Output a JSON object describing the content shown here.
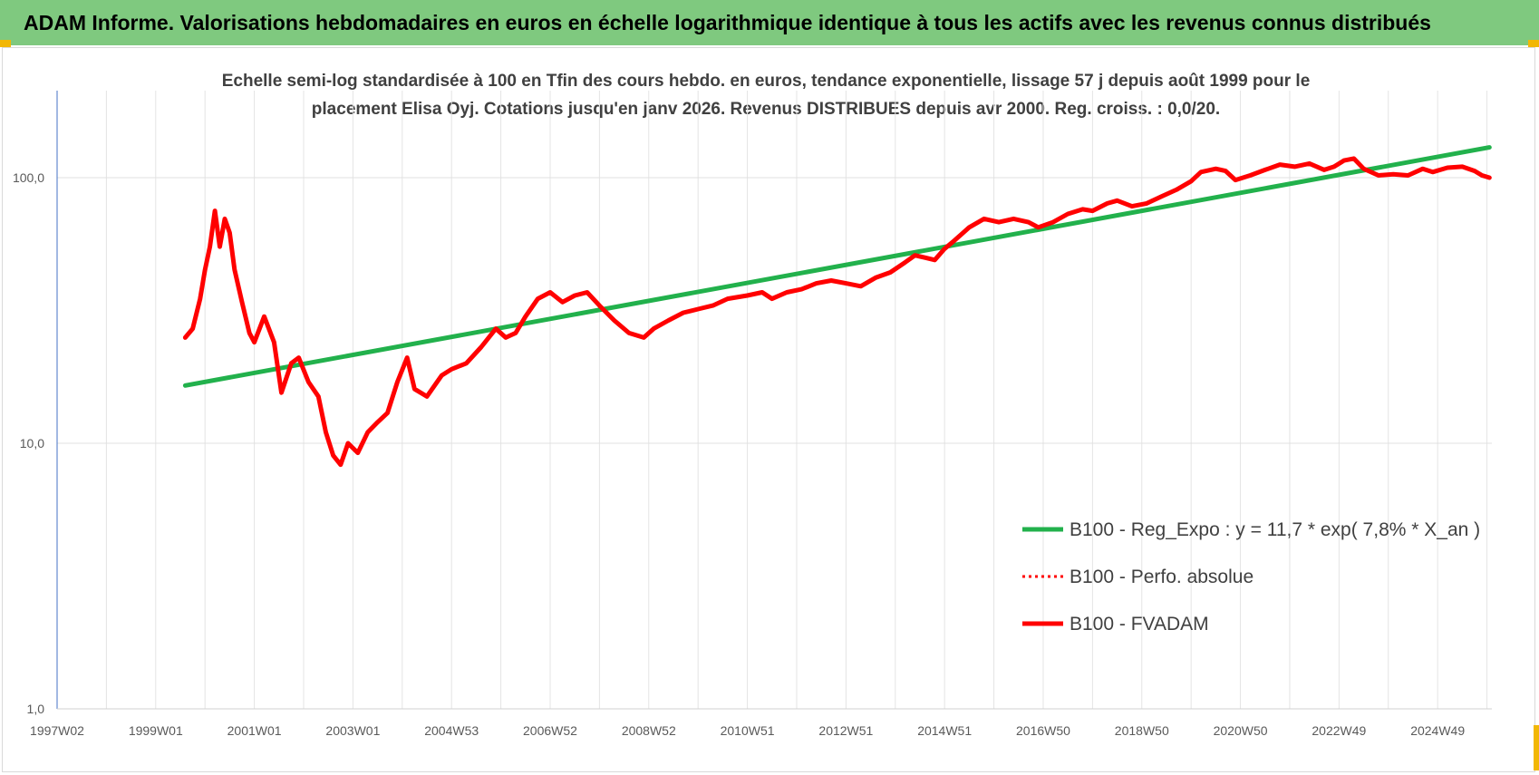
{
  "header": {
    "title": "ADAM Informe. Valorisations hebdomadaires en euros en échelle logarithmique identique à tous les actifs avec les revenus connus distribués"
  },
  "chart_data": {
    "type": "line",
    "title_lines": [
      "Echelle semi-log standardisée à 100 en Tfin des cours hebdo. en euros, tendance exponentielle, lissage 57 j depuis août 1999 pour le",
      "placement Elisa Oyj. Cotations jusqu'en janv 2026. Revenus DISTRIBUES  depuis avr 2000. Reg. croiss. : 0,0/20."
    ],
    "y_scale": "log",
    "ylim": [
      1,
      200
    ],
    "y_ticks": [
      {
        "value": 1,
        "label": "1,0"
      },
      {
        "value": 10,
        "label": "10,0"
      },
      {
        "value": 100,
        "label": "100,0"
      }
    ],
    "xlim": [
      1997.0,
      2026.1
    ],
    "x_ticks": [
      {
        "value": 1997.0,
        "label": "1997W02"
      },
      {
        "value": 1999.0,
        "label": "1999W01"
      },
      {
        "value": 2001.0,
        "label": "2001W01"
      },
      {
        "value": 2003.0,
        "label": "2003W01"
      },
      {
        "value": 2005.0,
        "label": "2004W53"
      },
      {
        "value": 2007.0,
        "label": "2006W52"
      },
      {
        "value": 2009.0,
        "label": "2008W52"
      },
      {
        "value": 2011.0,
        "label": "2010W51"
      },
      {
        "value": 2013.0,
        "label": "2012W51"
      },
      {
        "value": 2015.0,
        "label": "2014W51"
      },
      {
        "value": 2017.0,
        "label": "2016W50"
      },
      {
        "value": 2019.0,
        "label": "2018W50"
      },
      {
        "value": 2021.0,
        "label": "2020W50"
      },
      {
        "value": 2023.0,
        "label": "2022W49"
      },
      {
        "value": 2025.0,
        "label": "2024W49"
      }
    ],
    "grid": true,
    "legend_position": "bottom-right",
    "series": [
      {
        "name": "B100 - Reg_Expo : y = 11,7 * exp( 7,8% *  X_an )",
        "color": "#22b14c",
        "style": "solid",
        "points": [
          [
            1999.6,
            16.5
          ],
          [
            2026.05,
            130
          ]
        ]
      },
      {
        "name": "B100 - Perfo. absolue",
        "color": "#ff0000",
        "style": "dotted",
        "points": []
      },
      {
        "name": "B100 - FVADAM",
        "color": "#ff0000",
        "style": "solid",
        "points": [
          [
            1999.6,
            25
          ],
          [
            1999.75,
            27
          ],
          [
            1999.9,
            35
          ],
          [
            2000.0,
            45
          ],
          [
            2000.1,
            55
          ],
          [
            2000.2,
            75
          ],
          [
            2000.3,
            55
          ],
          [
            2000.4,
            70
          ],
          [
            2000.5,
            62
          ],
          [
            2000.6,
            45
          ],
          [
            2000.75,
            34
          ],
          [
            2000.9,
            26
          ],
          [
            2001.0,
            24
          ],
          [
            2001.2,
            30
          ],
          [
            2001.4,
            24
          ],
          [
            2001.55,
            15.5
          ],
          [
            2001.75,
            20
          ],
          [
            2001.9,
            21
          ],
          [
            2002.1,
            17
          ],
          [
            2002.3,
            15
          ],
          [
            2002.45,
            11
          ],
          [
            2002.6,
            9
          ],
          [
            2002.75,
            8.3
          ],
          [
            2002.9,
            10
          ],
          [
            2003.1,
            9.2
          ],
          [
            2003.3,
            11
          ],
          [
            2003.5,
            12
          ],
          [
            2003.7,
            13
          ],
          [
            2003.9,
            17
          ],
          [
            2004.1,
            21
          ],
          [
            2004.25,
            16
          ],
          [
            2004.5,
            15
          ],
          [
            2004.8,
            18
          ],
          [
            2005.0,
            19
          ],
          [
            2005.3,
            20
          ],
          [
            2005.6,
            23
          ],
          [
            2005.9,
            27
          ],
          [
            2006.1,
            25
          ],
          [
            2006.3,
            26
          ],
          [
            2006.5,
            30
          ],
          [
            2006.75,
            35
          ],
          [
            2007.0,
            37
          ],
          [
            2007.25,
            34
          ],
          [
            2007.5,
            36
          ],
          [
            2007.75,
            37
          ],
          [
            2008.0,
            33
          ],
          [
            2008.3,
            29
          ],
          [
            2008.6,
            26
          ],
          [
            2008.9,
            25
          ],
          [
            2009.1,
            27
          ],
          [
            2009.4,
            29
          ],
          [
            2009.7,
            31
          ],
          [
            2010.0,
            32
          ],
          [
            2010.3,
            33
          ],
          [
            2010.6,
            35
          ],
          [
            2011.0,
            36
          ],
          [
            2011.3,
            37
          ],
          [
            2011.5,
            35
          ],
          [
            2011.8,
            37
          ],
          [
            2012.1,
            38
          ],
          [
            2012.4,
            40
          ],
          [
            2012.7,
            41
          ],
          [
            2013.0,
            40
          ],
          [
            2013.3,
            39
          ],
          [
            2013.6,
            42
          ],
          [
            2013.9,
            44
          ],
          [
            2014.2,
            48
          ],
          [
            2014.4,
            51
          ],
          [
            2014.6,
            50
          ],
          [
            2014.8,
            49
          ],
          [
            2015.0,
            54
          ],
          [
            2015.2,
            58
          ],
          [
            2015.5,
            65
          ],
          [
            2015.8,
            70
          ],
          [
            2016.1,
            68
          ],
          [
            2016.4,
            70
          ],
          [
            2016.7,
            68
          ],
          [
            2016.9,
            65
          ],
          [
            2017.2,
            68
          ],
          [
            2017.5,
            73
          ],
          [
            2017.8,
            76
          ],
          [
            2018.0,
            75
          ],
          [
            2018.3,
            80
          ],
          [
            2018.5,
            82
          ],
          [
            2018.8,
            78
          ],
          [
            2019.1,
            80
          ],
          [
            2019.4,
            85
          ],
          [
            2019.7,
            90
          ],
          [
            2020.0,
            97
          ],
          [
            2020.2,
            105
          ],
          [
            2020.5,
            108
          ],
          [
            2020.7,
            106
          ],
          [
            2020.9,
            98
          ],
          [
            2021.2,
            102
          ],
          [
            2021.5,
            107
          ],
          [
            2021.8,
            112
          ],
          [
            2022.1,
            110
          ],
          [
            2022.4,
            113
          ],
          [
            2022.7,
            107
          ],
          [
            2022.9,
            110
          ],
          [
            2023.1,
            116
          ],
          [
            2023.3,
            118
          ],
          [
            2023.5,
            108
          ],
          [
            2023.8,
            102
          ],
          [
            2024.1,
            103
          ],
          [
            2024.4,
            102
          ],
          [
            2024.7,
            108
          ],
          [
            2024.9,
            105
          ],
          [
            2025.2,
            109
          ],
          [
            2025.5,
            110
          ],
          [
            2025.75,
            106
          ],
          [
            2025.9,
            102
          ],
          [
            2026.05,
            100
          ]
        ]
      }
    ]
  }
}
